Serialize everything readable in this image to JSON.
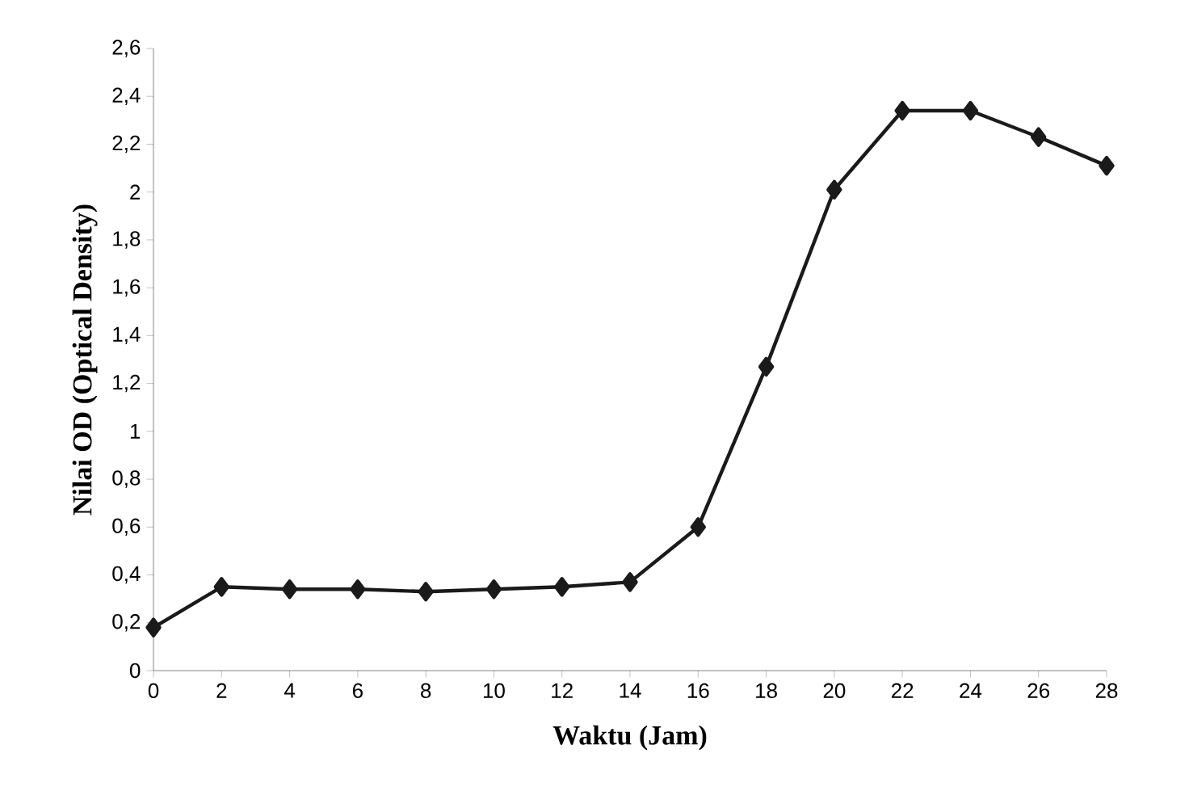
{
  "chart_data": {
    "type": "line",
    "xlabel": "Waktu (Jam)",
    "ylabel": "Nilai OD (Optical Density)",
    "x": [
      0,
      2,
      4,
      6,
      8,
      10,
      12,
      14,
      16,
      18,
      20,
      22,
      24,
      26,
      28
    ],
    "values": [
      0.18,
      0.35,
      0.34,
      0.34,
      0.33,
      0.34,
      0.35,
      0.37,
      0.6,
      1.27,
      2.01,
      2.34,
      2.34,
      2.23,
      2.11
    ],
    "color": "#1a1a1a",
    "marker": "diamond",
    "line_style": "solid",
    "xlim": [
      0,
      28
    ],
    "xticks": [
      0,
      2,
      4,
      6,
      8,
      10,
      12,
      14,
      16,
      18,
      20,
      22,
      24,
      26,
      28
    ],
    "ylim": [
      0,
      2.6
    ],
    "yticks": [
      0,
      {
        "value": 0.2,
        "label": "0,2"
      },
      {
        "value": 0.4,
        "label": "0,4"
      },
      {
        "value": 0.6,
        "label": "0,6"
      },
      {
        "value": 0.8,
        "label": "0,8"
      },
      1,
      {
        "value": 1.2,
        "label": "1,2"
      },
      {
        "value": 1.4,
        "label": "1,4"
      },
      {
        "value": 1.6,
        "label": "1,6"
      },
      {
        "value": 1.8,
        "label": "1,8"
      },
      2,
      {
        "value": 2.2,
        "label": "2,2"
      },
      {
        "value": 2.4,
        "label": "2,4"
      },
      {
        "value": 2.6,
        "label": "2,6"
      }
    ]
  }
}
